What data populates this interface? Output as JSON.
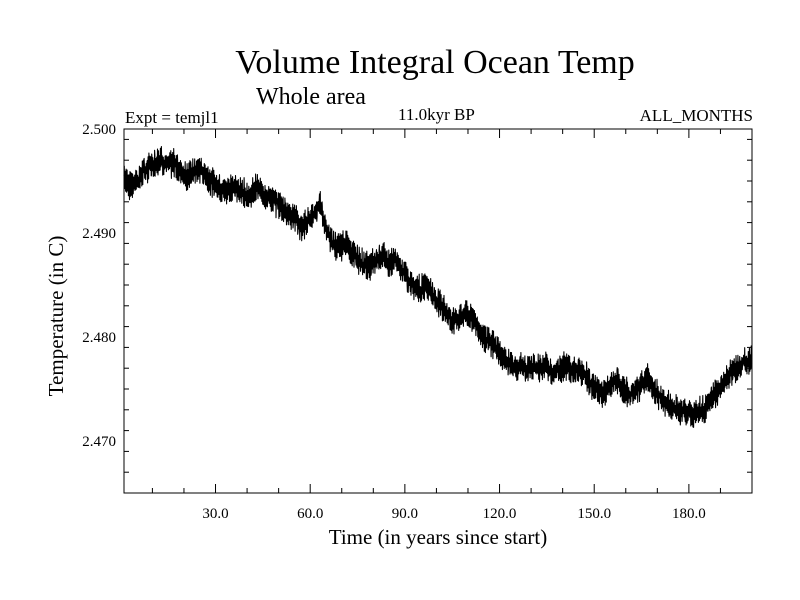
{
  "header": {
    "title": "Volume Integral Ocean Temp",
    "subtitle": "Whole area",
    "expt": "Expt = temjl1",
    "period": "11.0kyr BP",
    "months": "ALL_MONTHS"
  },
  "chart_data": {
    "type": "line",
    "xlabel": "Time (in years since start)",
    "ylabel": "Temperature (in C)",
    "xlim": [
      1,
      200
    ],
    "ylim": [
      2.465,
      2.5
    ],
    "xticks": [
      30,
      60,
      90,
      120,
      150,
      180
    ],
    "xtick_labels": [
      "30.0",
      "60.0",
      "90.0",
      "120.0",
      "150.0",
      "180.0"
    ],
    "yticks": [
      2.47,
      2.48,
      2.49,
      2.5
    ],
    "ytick_labels": [
      "2.470",
      "2.480",
      "2.490",
      "2.500"
    ],
    "grid": false,
    "series": [
      {
        "name": "Volume integral ocean temperature",
        "color": "#000000",
        "x": [
          1,
          3,
          5,
          7,
          9,
          11,
          13,
          15,
          17,
          19,
          21,
          23,
          25,
          27,
          29,
          31,
          33,
          35,
          37,
          39,
          41,
          43,
          45,
          47,
          49,
          51,
          53,
          55,
          57,
          59,
          61,
          63,
          65,
          67,
          69,
          71,
          73,
          75,
          77,
          79,
          81,
          83,
          85,
          87,
          89,
          91,
          93,
          95,
          97,
          99,
          101,
          103,
          105,
          107,
          109,
          111,
          113,
          115,
          117,
          119,
          121,
          123,
          125,
          127,
          129,
          131,
          133,
          135,
          137,
          139,
          141,
          143,
          145,
          147,
          149,
          151,
          153,
          155,
          157,
          159,
          161,
          163,
          165,
          167,
          169,
          171,
          173,
          175,
          177,
          179,
          181,
          183,
          185,
          187,
          189,
          191,
          193,
          195,
          197,
          199
        ],
        "values": [
          2.4955,
          2.4945,
          2.495,
          2.4958,
          2.4965,
          2.4968,
          2.497,
          2.4965,
          2.4968,
          2.496,
          2.4955,
          2.4958,
          2.4962,
          2.4955,
          2.4948,
          2.4945,
          2.494,
          2.4945,
          2.4942,
          2.494,
          2.4935,
          2.4945,
          2.4938,
          2.4935,
          2.493,
          2.4925,
          2.492,
          2.4915,
          2.4905,
          2.491,
          2.4918,
          2.4928,
          2.4905,
          2.489,
          2.4885,
          2.489,
          2.4882,
          2.4875,
          2.487,
          2.4868,
          2.4875,
          2.488,
          2.487,
          2.4875,
          2.4865,
          2.4855,
          2.485,
          2.4845,
          2.4852,
          2.484,
          2.4832,
          2.4825,
          2.4815,
          2.4818,
          2.4822,
          2.482,
          2.481,
          2.48,
          2.4795,
          2.479,
          2.478,
          2.4775,
          2.477,
          2.4772,
          2.4768,
          2.4772,
          2.477,
          2.4772,
          2.4765,
          2.477,
          2.4772,
          2.4768,
          2.477,
          2.4765,
          2.4755,
          2.475,
          2.4745,
          2.4752,
          2.476,
          2.475,
          2.4745,
          2.4748,
          2.4755,
          2.476,
          2.4748,
          2.4742,
          2.4735,
          2.4732,
          2.4728,
          2.473,
          2.4725,
          2.4728,
          2.473,
          2.474,
          2.4748,
          2.4755,
          2.4765,
          2.477,
          2.4775,
          2.4778
        ]
      }
    ]
  }
}
